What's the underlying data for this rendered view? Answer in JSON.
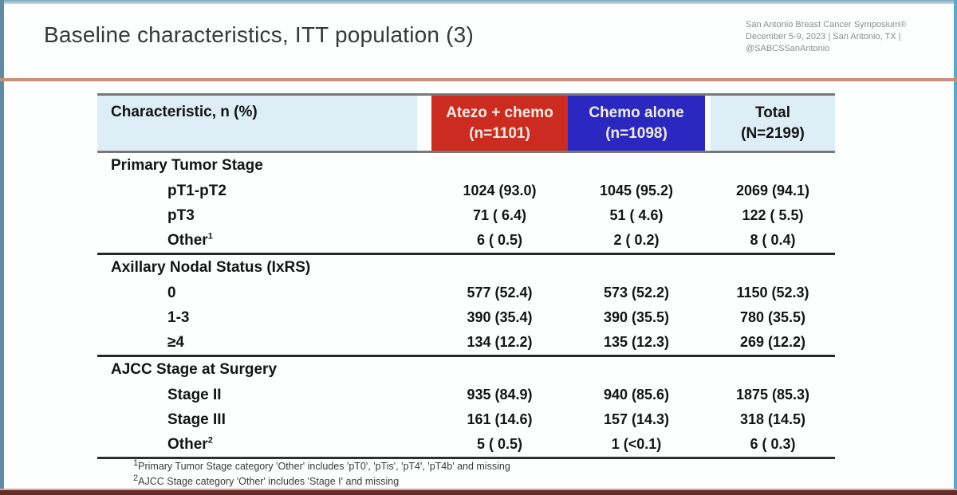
{
  "colors": {
    "atezo": "#cc2b20",
    "chemo": "#2a28c0",
    "header_bg": "#ddeef6",
    "rule": "#c7907e",
    "frame_left": "#5d8ba3",
    "frame_right": "#58a6d3",
    "bottom_bar": "#622b26"
  },
  "header": {
    "title": "Baseline characteristics, ITT population (3)",
    "meta_lines": [
      "San Antonio Breast Cancer Symposium®",
      "December 5-9, 2023  |  San Antonio, TX  |",
      "@SABCSSanAntonio"
    ]
  },
  "table": {
    "char_header": "Characteristic, n (%)",
    "col_atezo": {
      "line1": "Atezo + chemo",
      "line2": "(n=1101)"
    },
    "col_chemo": {
      "line1": "Chemo alone",
      "line2": "(n=1098)"
    },
    "col_total": {
      "line1": "Total",
      "line2": "(N=2199)"
    },
    "sections": [
      {
        "title": "Primary Tumor Stage",
        "rows": [
          {
            "label": "pT1-pT2",
            "sup": "",
            "atezo": "1024 (93.0)",
            "chemo": "1045 (95.2)",
            "total": "2069 (94.1)"
          },
          {
            "label": "pT3",
            "sup": "",
            "atezo": "71 ( 6.4)",
            "chemo": "51 ( 4.6)",
            "total": "122 ( 5.5)"
          },
          {
            "label": "Other",
            "sup": "1",
            "atezo": "6 ( 0.5)",
            "chemo": "2 ( 0.2)",
            "total": "8 ( 0.4)"
          }
        ]
      },
      {
        "title": "Axillary Nodal Status (IxRS)",
        "rows": [
          {
            "label": "0",
            "sup": "",
            "atezo": "577 (52.4)",
            "chemo": "573 (52.2)",
            "total": "1150 (52.3)"
          },
          {
            "label": "1-3",
            "sup": "",
            "atezo": "390 (35.4)",
            "chemo": "390 (35.5)",
            "total": "780 (35.5)"
          },
          {
            "label": "≥4",
            "sup": "",
            "atezo": "134 (12.2)",
            "chemo": "135 (12.3)",
            "total": "269 (12.2)"
          }
        ]
      },
      {
        "title": "AJCC Stage at Surgery",
        "rows": [
          {
            "label": "Stage II",
            "sup": "",
            "atezo": "935 (84.9)",
            "chemo": "940 (85.6)",
            "total": "1875 (85.3)"
          },
          {
            "label": "Stage III",
            "sup": "",
            "atezo": "161 (14.6)",
            "chemo": "157 (14.3)",
            "total": "318 (14.5)"
          },
          {
            "label": "Other",
            "sup": "2",
            "atezo": "5 ( 0.5)",
            "chemo": "1 (<0.1)",
            "total": "6 ( 0.3)"
          }
        ]
      }
    ]
  },
  "footnotes": [
    {
      "sup": "1",
      "text": "Primary Tumor Stage category 'Other' includes 'pT0', 'pTis', 'pT4', 'pT4b' and missing"
    },
    {
      "sup": "2",
      "text": "AJCC Stage category 'Other' includes 'Stage I' and missing"
    }
  ]
}
